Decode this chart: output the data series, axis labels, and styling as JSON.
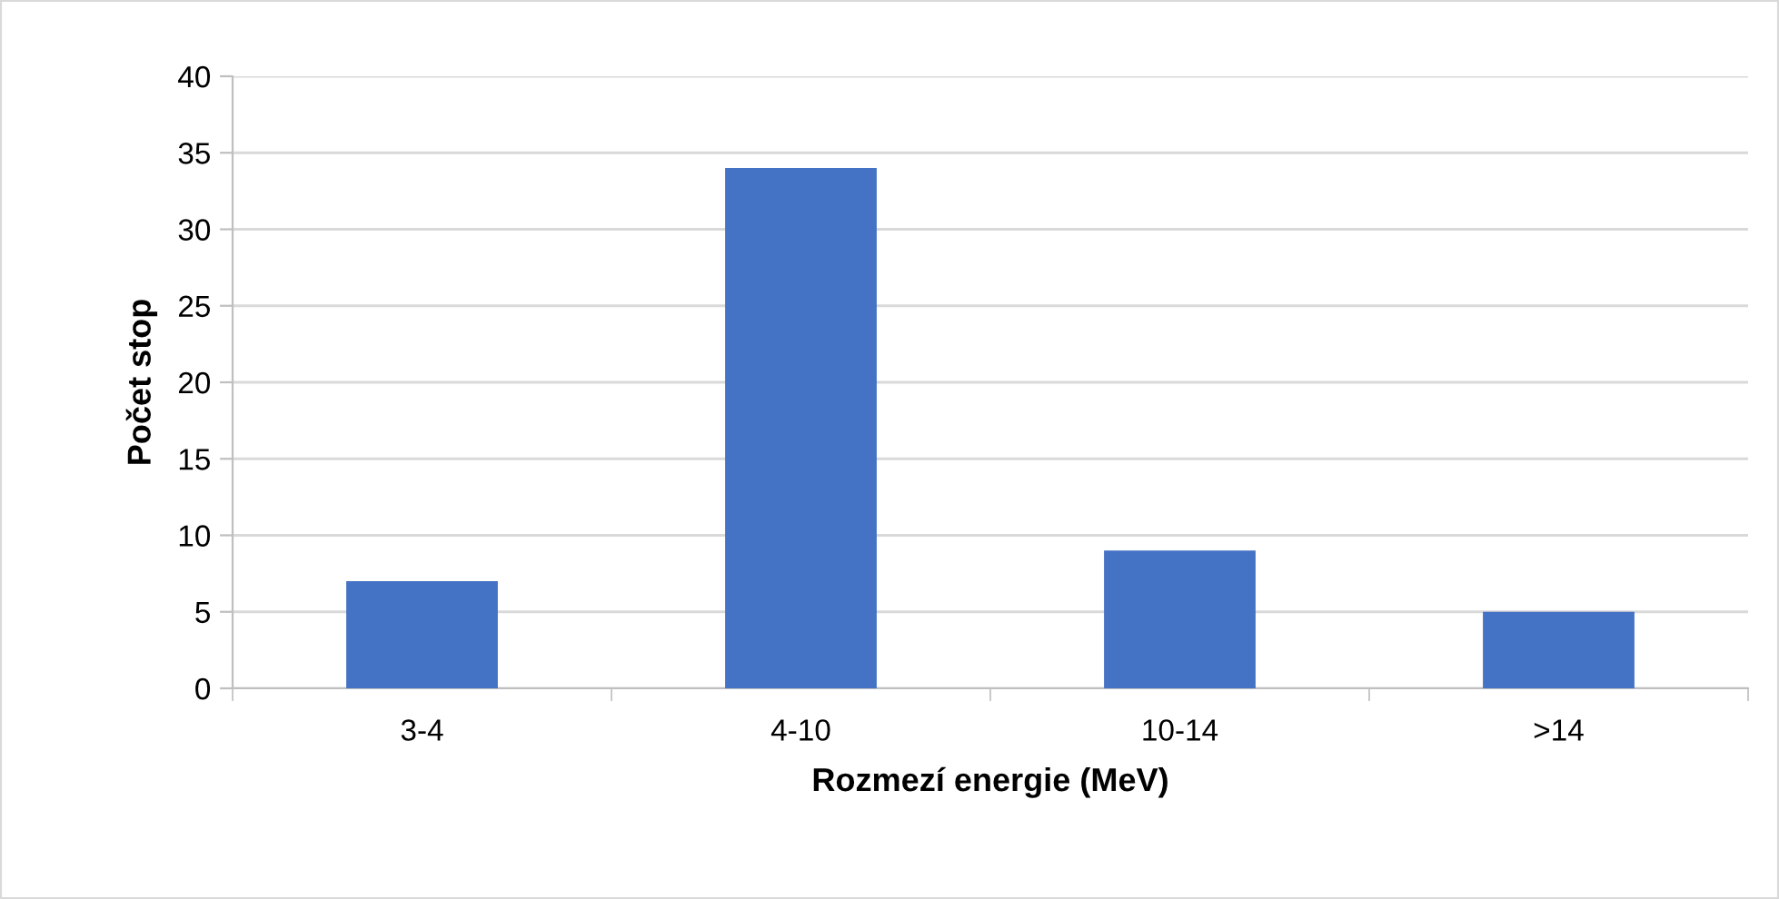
{
  "chart_data": {
    "type": "bar",
    "xlabel": "Rozmezí energie (MeV)",
    "ylabel": "Počet stop",
    "categories": [
      "3-4",
      "4-10",
      "10-14",
      ">14"
    ],
    "values": [
      7,
      34,
      9,
      5
    ],
    "color": "#4472c4",
    "ylim": [
      0,
      40
    ],
    "yticks": [
      0,
      5,
      10,
      15,
      20,
      25,
      30,
      35,
      40
    ],
    "grid": "y"
  }
}
